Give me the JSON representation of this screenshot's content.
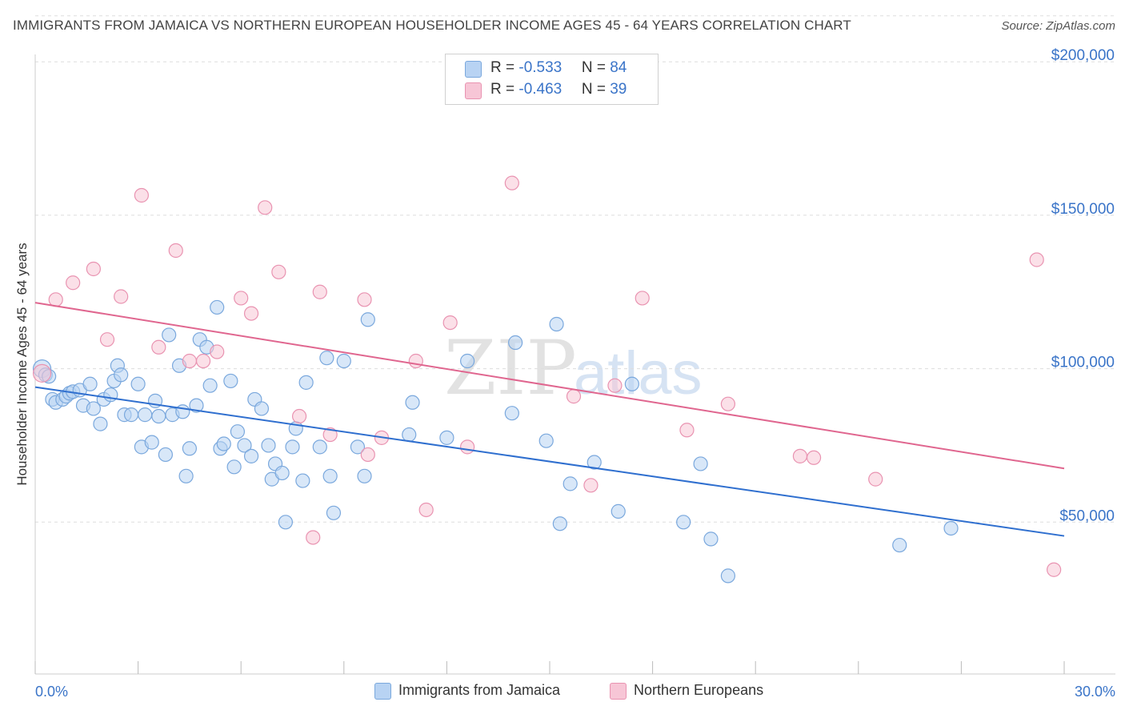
{
  "title": "IMMIGRANTS FROM JAMAICA VS NORTHERN EUROPEAN HOUSEHOLDER INCOME AGES 45 - 64 YEARS CORRELATION CHART",
  "source": "Source: ZipAtlas.com",
  "watermark": {
    "zip": "ZIP",
    "atlas": "atlas"
  },
  "legend_top": {
    "rows": [
      {
        "r_label": "R = ",
        "r_value": "-0.533",
        "n_label": "N = ",
        "n_value": "84"
      },
      {
        "r_label": "R = ",
        "r_value": "-0.463",
        "n_label": "N = ",
        "n_value": "39"
      }
    ]
  },
  "legend_bottom": [
    "Immigrants from Jamaica",
    "Northern Europeans"
  ],
  "colors": {
    "blue_fill": "#b8d3f3",
    "blue_stroke": "#7aa8dd",
    "blue_line": "#2f6fcf",
    "pink_fill": "#f7c6d6",
    "pink_stroke": "#e993b1",
    "pink_line": "#e0668f",
    "tick_label": "#3a74c8"
  },
  "chart_data": {
    "type": "scatter",
    "title": "IMMIGRANTS FROM JAMAICA VS NORTHERN EUROPEAN HOUSEHOLDER INCOME AGES 45 - 64 YEARS CORRELATION CHART",
    "xlabel": "",
    "ylabel": "Householder Income Ages 45 - 64 years",
    "xlim": [
      0,
      30
    ],
    "ylim": [
      0,
      215000
    ],
    "x_tick_labels": [
      "0.0%",
      "30.0%"
    ],
    "y_ticks": [
      50000,
      100000,
      150000,
      200000
    ],
    "y_tick_labels": [
      "$50,000",
      "$100,000",
      "$150,000",
      "$200,000"
    ],
    "grid": "horizontal dashed",
    "legend": "top-center",
    "series": [
      {
        "name": "Immigrants from Jamaica",
        "r": -0.533,
        "n": 84,
        "trend": {
          "x": [
            0,
            30
          ],
          "y": [
            94000,
            45500
          ]
        },
        "points": [
          [
            0.2,
            100000
          ],
          [
            0.3,
            98000
          ],
          [
            0.4,
            97500
          ],
          [
            0.5,
            90000
          ],
          [
            0.6,
            89000
          ],
          [
            0.8,
            90000
          ],
          [
            0.9,
            91000
          ],
          [
            1.0,
            92000
          ],
          [
            1.1,
            92500
          ],
          [
            1.3,
            93000
          ],
          [
            1.4,
            88000
          ],
          [
            1.6,
            95000
          ],
          [
            1.7,
            87000
          ],
          [
            1.9,
            82000
          ],
          [
            2.0,
            90000
          ],
          [
            2.2,
            91500
          ],
          [
            2.3,
            96000
          ],
          [
            2.4,
            101000
          ],
          [
            2.5,
            98000
          ],
          [
            2.6,
            85000
          ],
          [
            2.8,
            85000
          ],
          [
            3.0,
            95000
          ],
          [
            3.1,
            74500
          ],
          [
            3.2,
            85000
          ],
          [
            3.4,
            76000
          ],
          [
            3.5,
            89500
          ],
          [
            3.6,
            84500
          ],
          [
            3.8,
            72000
          ],
          [
            3.9,
            111000
          ],
          [
            4.0,
            85000
          ],
          [
            4.2,
            101000
          ],
          [
            4.3,
            86000
          ],
          [
            4.4,
            65000
          ],
          [
            4.5,
            74000
          ],
          [
            4.7,
            88000
          ],
          [
            4.8,
            109500
          ],
          [
            5.0,
            107000
          ],
          [
            5.1,
            94500
          ],
          [
            5.3,
            120000
          ],
          [
            5.4,
            74000
          ],
          [
            5.5,
            75500
          ],
          [
            5.7,
            96000
          ],
          [
            5.8,
            68000
          ],
          [
            5.9,
            79500
          ],
          [
            6.1,
            75000
          ],
          [
            6.3,
            71500
          ],
          [
            6.4,
            90000
          ],
          [
            6.6,
            87000
          ],
          [
            6.8,
            75000
          ],
          [
            6.9,
            64000
          ],
          [
            7.0,
            69000
          ],
          [
            7.2,
            66000
          ],
          [
            7.3,
            50000
          ],
          [
            7.5,
            74500
          ],
          [
            7.6,
            80500
          ],
          [
            7.8,
            63500
          ],
          [
            7.9,
            95500
          ],
          [
            8.3,
            74500
          ],
          [
            8.5,
            103500
          ],
          [
            8.6,
            65000
          ],
          [
            8.7,
            53000
          ],
          [
            9.0,
            102500
          ],
          [
            9.4,
            74500
          ],
          [
            9.6,
            65000
          ],
          [
            9.7,
            116000
          ],
          [
            10.9,
            78500
          ],
          [
            11.0,
            89000
          ],
          [
            12.0,
            77500
          ],
          [
            12.6,
            102500
          ],
          [
            13.9,
            85500
          ],
          [
            14.0,
            108500
          ],
          [
            14.9,
            76500
          ],
          [
            15.2,
            114500
          ],
          [
            15.3,
            49500
          ],
          [
            15.6,
            62500
          ],
          [
            16.3,
            69500
          ],
          [
            17.0,
            53500
          ],
          [
            17.4,
            95000
          ],
          [
            18.9,
            50000
          ],
          [
            19.4,
            69000
          ],
          [
            19.7,
            44500
          ],
          [
            20.2,
            32500
          ],
          [
            25.2,
            42500
          ],
          [
            26.7,
            48000
          ]
        ]
      },
      {
        "name": "Northern Europeans",
        "r": -0.463,
        "n": 39,
        "trend": {
          "x": [
            0,
            30
          ],
          "y": [
            121500,
            67500
          ]
        },
        "points": [
          [
            0.2,
            98500
          ],
          [
            0.6,
            122500
          ],
          [
            1.1,
            128000
          ],
          [
            1.7,
            132500
          ],
          [
            2.1,
            109500
          ],
          [
            2.5,
            123500
          ],
          [
            3.1,
            156500
          ],
          [
            3.6,
            107000
          ],
          [
            4.1,
            138500
          ],
          [
            4.5,
            102500
          ],
          [
            4.9,
            102500
          ],
          [
            5.3,
            105500
          ],
          [
            6.0,
            123000
          ],
          [
            6.3,
            118000
          ],
          [
            6.7,
            152500
          ],
          [
            7.1,
            131500
          ],
          [
            7.7,
            84500
          ],
          [
            8.1,
            45000
          ],
          [
            8.3,
            125000
          ],
          [
            8.6,
            78500
          ],
          [
            9.6,
            122500
          ],
          [
            9.7,
            72000
          ],
          [
            10.1,
            77500
          ],
          [
            11.1,
            102500
          ],
          [
            11.4,
            54000
          ],
          [
            12.1,
            115000
          ],
          [
            12.6,
            74500
          ],
          [
            13.9,
            160500
          ],
          [
            15.7,
            91000
          ],
          [
            16.2,
            62000
          ],
          [
            16.9,
            94500
          ],
          [
            17.7,
            123000
          ],
          [
            19.0,
            80000
          ],
          [
            20.2,
            88500
          ],
          [
            22.3,
            71500
          ],
          [
            22.7,
            71000
          ],
          [
            24.5,
            64000
          ],
          [
            29.2,
            135500
          ],
          [
            29.7,
            34500
          ]
        ]
      }
    ]
  }
}
